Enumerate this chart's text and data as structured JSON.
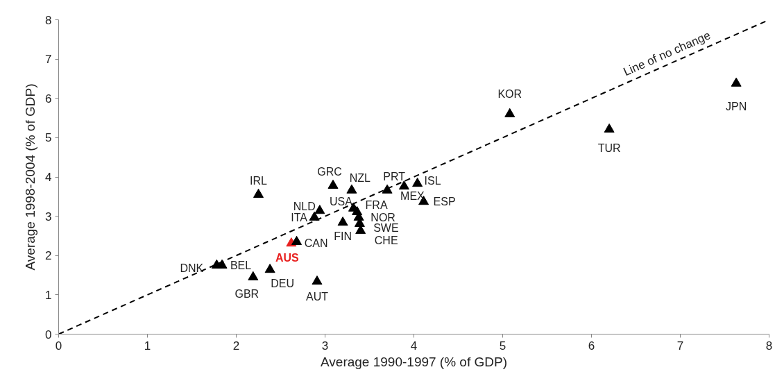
{
  "chart_data": {
    "type": "scatter",
    "xlabel": "Average 1990-1997 (% of GDP)",
    "ylabel": "Average 1998-2004 (% of GDP)",
    "xlim": [
      0,
      8
    ],
    "ylim": [
      0,
      8
    ],
    "xticks": [
      0,
      1,
      2,
      3,
      4,
      5,
      6,
      7,
      8
    ],
    "yticks": [
      0,
      1,
      2,
      3,
      4,
      5,
      6,
      7,
      8
    ],
    "grid": false,
    "marker": "triangle",
    "series": [
      {
        "color": "#000000",
        "x": [
          2.25,
          3.09,
          3.3,
          3.7,
          3.89,
          4.04,
          4.11,
          2.94,
          2.88,
          3.32,
          3.36,
          3.38,
          3.39,
          3.4,
          3.2,
          2.62,
          2.68,
          1.78,
          1.84,
          2.38,
          2.19,
          2.91,
          5.08,
          6.2,
          7.63
        ],
        "values": [
          3.55,
          3.78,
          3.66,
          3.66,
          3.76,
          3.83,
          3.37,
          3.14,
          2.97,
          3.2,
          3.11,
          2.97,
          2.81,
          2.63,
          2.84,
          2.31,
          2.35,
          1.75,
          1.75,
          1.64,
          1.45,
          1.34,
          5.6,
          5.21,
          6.38
        ],
        "colors": [
          "#000000",
          "#000000",
          "#000000",
          "#000000",
          "#000000",
          "#000000",
          "#000000",
          "#000000",
          "#000000",
          "#000000",
          "#000000",
          "#000000",
          "#000000",
          "#000000",
          "#000000",
          "#e8201f",
          "#000000",
          "#000000",
          "#000000",
          "#000000",
          "#000000",
          "#000000",
          "#000000",
          "#000000",
          "#000000"
        ]
      },
      {
        "type": "line",
        "name": "Line of no change",
        "color": "#000000",
        "line_style": "dashed",
        "marker": "none",
        "x": [
          0,
          8
        ],
        "values": [
          0,
          8
        ]
      }
    ],
    "annotations": [
      {
        "text": "IRL",
        "x": 2.25,
        "y": 3.55
      },
      {
        "text": "GRC",
        "x": 3.09,
        "y": 3.78
      },
      {
        "text": "NZL",
        "x": 3.3,
        "y": 3.66
      },
      {
        "text": "PRT",
        "x": 3.7,
        "y": 3.66
      },
      {
        "text": "MEX",
        "x": 3.89,
        "y": 3.76
      },
      {
        "text": "ISL",
        "x": 4.04,
        "y": 3.83
      },
      {
        "text": "ESP",
        "x": 4.11,
        "y": 3.37
      },
      {
        "text": "NLD",
        "x": 2.94,
        "y": 3.14
      },
      {
        "text": "ITA",
        "x": 2.88,
        "y": 2.97
      },
      {
        "text": "USA",
        "x": 3.32,
        "y": 3.2
      },
      {
        "text": "FRA",
        "x": 3.36,
        "y": 3.11
      },
      {
        "text": "NOR",
        "x": 3.38,
        "y": 2.97
      },
      {
        "text": "SWE",
        "x": 3.39,
        "y": 2.81
      },
      {
        "text": "CHE",
        "x": 3.4,
        "y": 2.63
      },
      {
        "text": "FIN",
        "x": 3.2,
        "y": 2.84
      },
      {
        "text": "AUS",
        "x": 2.62,
        "y": 2.31
      },
      {
        "text": "CAN",
        "x": 2.68,
        "y": 2.35
      },
      {
        "text": "DNK",
        "x": 1.78,
        "y": 1.75
      },
      {
        "text": "BEL",
        "x": 1.84,
        "y": 1.75
      },
      {
        "text": "DEU",
        "x": 2.38,
        "y": 1.64
      },
      {
        "text": "GBR",
        "x": 2.19,
        "y": 1.45
      },
      {
        "text": "AUT",
        "x": 2.91,
        "y": 1.34
      },
      {
        "text": "KOR",
        "x": 5.08,
        "y": 5.6
      },
      {
        "text": "TUR",
        "x": 6.2,
        "y": 5.21
      },
      {
        "text": "JPN",
        "x": 7.63,
        "y": 6.38
      }
    ]
  }
}
